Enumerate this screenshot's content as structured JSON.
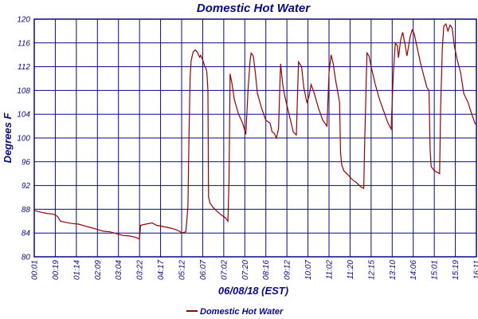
{
  "chart_data": {
    "type": "line",
    "title": "Domestic Hot Water",
    "xlabel": "06/08/18 (EST)",
    "ylabel": "Degrees F",
    "ylim": [
      80,
      120
    ],
    "y_ticks": [
      80,
      84,
      88,
      92,
      96,
      100,
      104,
      108,
      112,
      116,
      120
    ],
    "x_ticks": [
      "00:01",
      "00:19",
      "01:14",
      "02:09",
      "03:04",
      "03:22",
      "04:17",
      "05:12",
      "06:07",
      "07:02",
      "07:20",
      "08:16",
      "09:12",
      "10:07",
      "11:02",
      "11:20",
      "12:15",
      "13:10",
      "14:06",
      "15:01",
      "15:19",
      "16:11"
    ],
    "grid": true,
    "legend": "bottom-left",
    "colors": {
      "series": "#9b0000",
      "text": "#0a0a84",
      "grid": "#0a0a84"
    },
    "series": [
      {
        "name": "Domestic Hot Water",
        "points": [
          [
            0.0,
            87.8
          ],
          [
            0.3,
            87.5
          ],
          [
            0.6,
            87.3
          ],
          [
            0.9,
            87.2
          ],
          [
            1.1,
            86.8
          ],
          [
            1.25,
            86.0
          ],
          [
            1.5,
            85.8
          ],
          [
            1.8,
            85.6
          ],
          [
            2.1,
            85.5
          ],
          [
            2.4,
            85.2
          ],
          [
            2.7,
            84.9
          ],
          [
            3.0,
            84.6
          ],
          [
            3.3,
            84.3
          ],
          [
            3.6,
            84.2
          ],
          [
            3.9,
            83.9
          ],
          [
            4.2,
            83.6
          ],
          [
            4.5,
            83.5
          ],
          [
            4.8,
            83.3
          ],
          [
            5.0,
            83.0
          ],
          [
            5.05,
            85.3
          ],
          [
            5.3,
            85.5
          ],
          [
            5.6,
            85.7
          ],
          [
            5.8,
            85.3
          ],
          [
            6.1,
            85.1
          ],
          [
            6.4,
            84.9
          ],
          [
            6.7,
            84.6
          ],
          [
            6.9,
            84.3
          ],
          [
            7.0,
            84.0
          ],
          [
            7.2,
            84.2
          ],
          [
            7.3,
            88.5
          ],
          [
            7.35,
            100
          ],
          [
            7.4,
            110
          ],
          [
            7.45,
            113
          ],
          [
            7.55,
            114.5
          ],
          [
            7.65,
            114.8
          ],
          [
            7.75,
            114.4
          ],
          [
            7.85,
            113.6
          ],
          [
            7.9,
            113.9
          ],
          [
            8.0,
            113.2
          ],
          [
            8.1,
            112.0
          ],
          [
            8.15,
            111.8
          ],
          [
            8.2,
            111.0
          ],
          [
            8.25,
            108.0
          ],
          [
            8.28,
            90
          ],
          [
            8.35,
            89.0
          ],
          [
            8.5,
            88.3
          ],
          [
            8.7,
            87.6
          ],
          [
            8.9,
            87.0
          ],
          [
            9.1,
            86.5
          ],
          [
            9.2,
            86.0
          ],
          [
            9.25,
            93
          ],
          [
            9.3,
            110.8
          ],
          [
            9.4,
            109.0
          ],
          [
            9.5,
            106.5
          ],
          [
            9.7,
            104.0
          ],
          [
            9.9,
            102.5
          ],
          [
            10.05,
            100.6
          ],
          [
            10.15,
            108.0
          ],
          [
            10.25,
            113.0
          ],
          [
            10.3,
            114.3
          ],
          [
            10.4,
            113.8
          ],
          [
            10.5,
            111.0
          ],
          [
            10.6,
            107.5
          ],
          [
            10.8,
            105.0
          ],
          [
            11.0,
            103.0
          ],
          [
            11.2,
            102.5
          ],
          [
            11.3,
            101.0
          ],
          [
            11.4,
            100.8
          ],
          [
            11.5,
            100.0
          ],
          [
            11.6,
            101.5
          ],
          [
            11.7,
            112.5
          ],
          [
            11.8,
            109.0
          ],
          [
            11.9,
            107.0
          ],
          [
            12.1,
            104.0
          ],
          [
            12.3,
            101.0
          ],
          [
            12.45,
            100.5
          ],
          [
            12.55,
            112.8
          ],
          [
            12.7,
            112.0
          ],
          [
            12.8,
            108.5
          ],
          [
            12.95,
            106.0
          ],
          [
            13.05,
            107.0
          ],
          [
            13.15,
            109.0
          ],
          [
            13.3,
            107.5
          ],
          [
            13.5,
            105.0
          ],
          [
            13.7,
            103.0
          ],
          [
            13.9,
            102.0
          ],
          [
            14.0,
            111.0
          ],
          [
            14.1,
            114.0
          ],
          [
            14.2,
            112.5
          ],
          [
            14.3,
            110.0
          ],
          [
            14.4,
            108.0
          ],
          [
            14.5,
            106.0
          ],
          [
            14.55,
            97.5
          ],
          [
            14.6,
            95.5
          ],
          [
            14.7,
            94.5
          ],
          [
            14.9,
            93.8
          ],
          [
            15.1,
            93.0
          ],
          [
            15.3,
            92.5
          ],
          [
            15.5,
            91.8
          ],
          [
            15.65,
            91.5
          ],
          [
            15.7,
            100
          ],
          [
            15.8,
            114.3
          ],
          [
            15.9,
            113.8
          ],
          [
            16.0,
            112.0
          ],
          [
            16.2,
            109.0
          ],
          [
            16.4,
            106.5
          ],
          [
            16.6,
            104.5
          ],
          [
            16.8,
            102.5
          ],
          [
            16.95,
            101.5
          ],
          [
            17.05,
            110.5
          ],
          [
            17.15,
            116.0
          ],
          [
            17.25,
            115.5
          ],
          [
            17.3,
            113.5
          ],
          [
            17.4,
            116.5
          ],
          [
            17.5,
            117.8
          ],
          [
            17.6,
            116.0
          ],
          [
            17.7,
            113.8
          ],
          [
            17.85,
            117.0
          ],
          [
            17.95,
            118.2
          ],
          [
            18.05,
            117.5
          ],
          [
            18.2,
            115.0
          ],
          [
            18.35,
            112.5
          ],
          [
            18.5,
            110.5
          ],
          [
            18.65,
            108.5
          ],
          [
            18.75,
            108.0
          ],
          [
            18.8,
            98.0
          ],
          [
            18.85,
            95.2
          ],
          [
            19.0,
            94.5
          ],
          [
            19.15,
            94.2
          ],
          [
            19.25,
            94.0
          ],
          [
            19.3,
            105.0
          ],
          [
            19.38,
            115.0
          ],
          [
            19.45,
            118.8
          ],
          [
            19.55,
            119.2
          ],
          [
            19.65,
            118.0
          ],
          [
            19.75,
            119.0
          ],
          [
            19.85,
            118.5
          ],
          [
            19.95,
            115.5
          ],
          [
            20.1,
            113.0
          ],
          [
            20.25,
            111.0
          ],
          [
            20.4,
            107.5
          ],
          [
            20.6,
            106.0
          ],
          [
            20.8,
            103.8
          ],
          [
            20.95,
            102.3
          ]
        ]
      }
    ]
  }
}
